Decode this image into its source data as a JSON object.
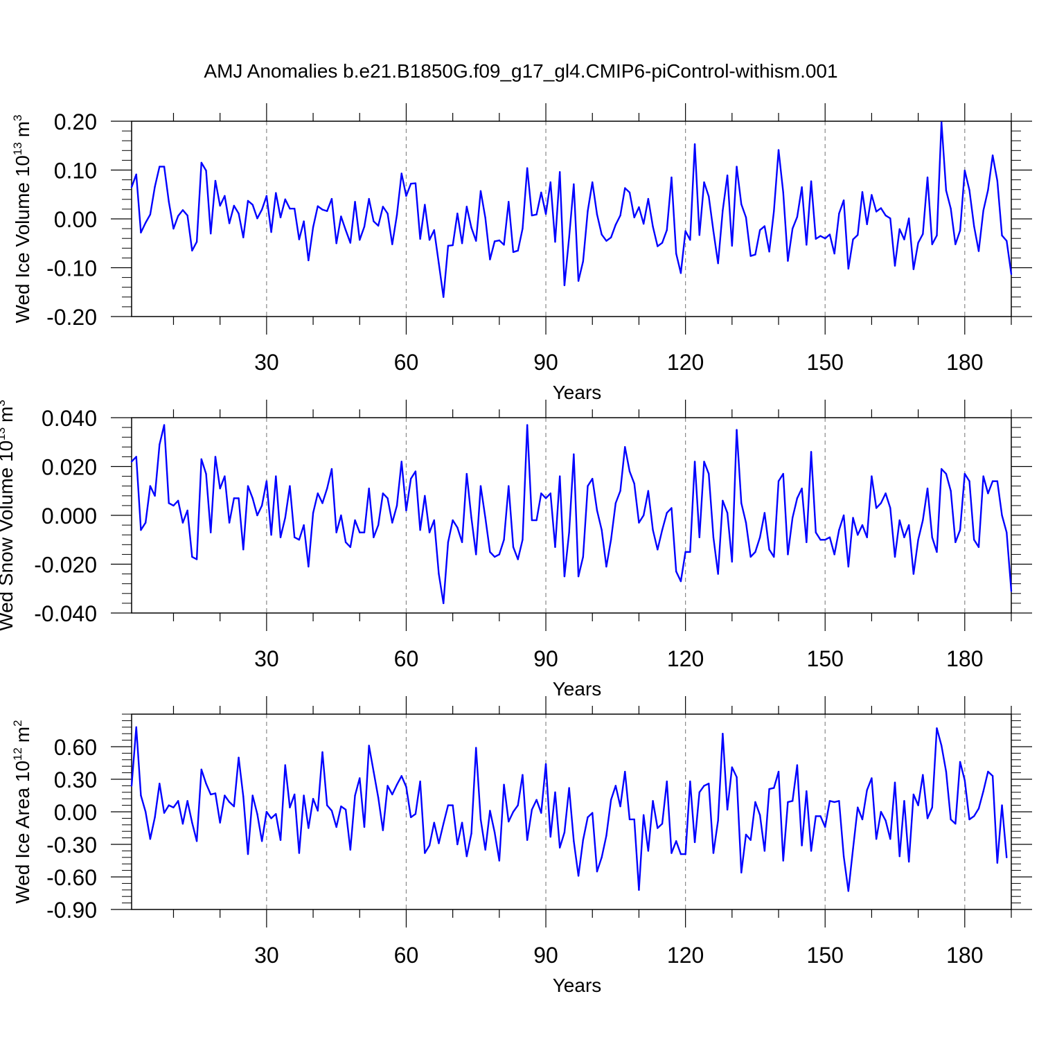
{
  "figure": {
    "title": "AMJ Anomalies b.e21.B1850G.f09_g17_gl4.CMIP6-piControl-withism.001"
  },
  "line_color": "#0000ff",
  "chart_data": [
    {
      "type": "line",
      "ylabel": "Wed Ice Volume 10",
      "ylabel_exp": "13",
      "ylabel_unit": "m",
      "ylabel_unit_exp": "3",
      "xlabel": "Years",
      "xlim": [
        1,
        190
      ],
      "ylim": [
        -0.2,
        0.2
      ],
      "x_ticks": [
        30,
        60,
        90,
        120,
        150,
        180
      ],
      "x_tick_labels": [
        "30",
        "60",
        "90",
        "120",
        "150",
        "180"
      ],
      "y_ticks": [
        -0.2,
        -0.1,
        0.0,
        0.1,
        0.2
      ],
      "y_tick_labels": [
        "-0.20",
        "-0.10",
        "0.00",
        "0.10",
        "0.20"
      ],
      "minor_y_step": 0.02,
      "grid": "dashed vertical lines at major x ticks",
      "series": [
        {
          "values": [
            0.065,
            0.091,
            -0.028,
            -0.008,
            0.009,
            0.066,
            0.107,
            0.107,
            0.035,
            -0.02,
            0.006,
            0.018,
            0.007,
            -0.065,
            -0.047,
            0.115,
            0.099,
            -0.03,
            0.078,
            0.027,
            0.047,
            -0.009,
            0.027,
            0.011,
            -0.038,
            0.037,
            0.029,
            0.001,
            0.019,
            0.047,
            -0.027,
            0.053,
            0.003,
            0.04,
            0.021,
            0.021,
            -0.042,
            -0.005,
            -0.085,
            -0.017,
            0.026,
            0.019,
            0.016,
            0.041,
            -0.05,
            0.005,
            -0.023,
            -0.049,
            0.035,
            -0.043,
            -0.016,
            0.041,
            -0.005,
            -0.014,
            0.025,
            0.011,
            -0.052,
            0.008,
            0.093,
            0.047,
            0.072,
            0.073,
            -0.041,
            0.029,
            -0.043,
            -0.023,
            -0.091,
            -0.16,
            -0.055,
            -0.054,
            0.011,
            -0.05,
            0.025,
            -0.018,
            -0.045,
            0.057,
            0.002,
            -0.083,
            -0.046,
            -0.044,
            -0.053,
            0.035,
            -0.068,
            -0.065,
            -0.02,
            0.104,
            0.007,
            0.009,
            0.054,
            0.01,
            0.075,
            -0.047,
            0.096,
            -0.136,
            -0.038,
            0.071,
            -0.127,
            -0.087,
            0.016,
            0.075,
            0.009,
            -0.032,
            -0.045,
            -0.038,
            -0.012,
            0.007,
            0.063,
            0.054,
            0.003,
            0.024,
            -0.01,
            0.041,
            -0.016,
            -0.056,
            -0.049,
            -0.023,
            0.085,
            -0.071,
            -0.111,
            -0.025,
            -0.043,
            0.153,
            -0.033,
            0.075,
            0.046,
            -0.025,
            -0.091,
            0.017,
            0.089,
            -0.055,
            0.107,
            0.03,
            0.003,
            -0.076,
            -0.073,
            -0.023,
            -0.015,
            -0.067,
            0.016,
            0.141,
            0.054,
            -0.086,
            -0.02,
            0.004,
            0.065,
            -0.053,
            0.077,
            -0.041,
            -0.035,
            -0.04,
            -0.032,
            -0.071,
            0.011,
            0.038,
            -0.102,
            -0.042,
            -0.033,
            0.055,
            -0.011,
            0.049,
            0.015,
            0.022,
            0.007,
            0.001,
            -0.096,
            -0.021,
            -0.042,
            0.001,
            -0.103,
            -0.049,
            -0.031,
            0.085,
            -0.052,
            -0.034,
            0.198,
            0.058,
            0.021,
            -0.052,
            -0.024,
            0.099,
            0.059,
            -0.015,
            -0.066,
            0.017,
            0.059,
            0.13,
            0.078,
            -0.034,
            -0.045,
            -0.113
          ]
        }
      ]
    },
    {
      "type": "line",
      "ylabel": "Wed Snow Volume 10",
      "ylabel_exp": "13",
      "ylabel_unit": "m",
      "ylabel_unit_exp": "3",
      "xlabel": "Years",
      "xlim": [
        1,
        190
      ],
      "ylim": [
        -0.04,
        0.04
      ],
      "x_ticks": [
        30,
        60,
        90,
        120,
        150,
        180
      ],
      "x_tick_labels": [
        "30",
        "60",
        "90",
        "120",
        "150",
        "180"
      ],
      "y_ticks": [
        -0.04,
        -0.02,
        0.0,
        0.02,
        0.04
      ],
      "y_tick_labels": [
        "-0.040",
        "-0.020",
        "0.000",
        "0.020",
        "0.040"
      ],
      "minor_y_step": 0.004,
      "grid": "dashed vertical lines at major x ticks",
      "series": [
        {
          "values": [
            0.022,
            0.024,
            -0.006,
            -0.003,
            0.012,
            0.008,
            0.029,
            0.037,
            0.005,
            0.004,
            0.006,
            -0.003,
            0.002,
            -0.017,
            -0.018,
            0.023,
            0.017,
            -0.007,
            0.024,
            0.011,
            0.016,
            -0.003,
            0.007,
            0.007,
            -0.014,
            0.012,
            0.007,
            0.0,
            0.004,
            0.014,
            -0.008,
            0.016,
            -0.009,
            -0.001,
            0.012,
            -0.009,
            -0.01,
            -0.004,
            -0.021,
            0.001,
            0.009,
            0.005,
            0.011,
            0.019,
            -0.007,
            0.0,
            -0.011,
            -0.013,
            -0.002,
            -0.007,
            -0.007,
            0.011,
            -0.009,
            -0.004,
            0.009,
            0.007,
            -0.003,
            0.004,
            0.022,
            0.002,
            0.015,
            0.018,
            -0.006,
            0.008,
            -0.007,
            -0.002,
            -0.024,
            -0.036,
            -0.011,
            -0.002,
            -0.005,
            -0.011,
            0.017,
            -0.001,
            -0.016,
            0.012,
            -0.001,
            -0.015,
            -0.017,
            -0.016,
            -0.01,
            0.012,
            -0.013,
            -0.018,
            -0.01,
            0.037,
            -0.002,
            -0.002,
            0.009,
            0.007,
            0.009,
            -0.013,
            0.016,
            -0.025,
            -0.007,
            0.025,
            -0.025,
            -0.017,
            0.012,
            0.015,
            0.002,
            -0.006,
            -0.021,
            -0.01,
            0.005,
            0.01,
            0.028,
            0.018,
            0.013,
            -0.003,
            0.0,
            0.01,
            -0.006,
            -0.014,
            -0.006,
            0.001,
            0.003,
            -0.023,
            -0.027,
            -0.015,
            -0.015,
            0.022,
            -0.009,
            0.022,
            0.017,
            -0.009,
            -0.024,
            0.006,
            0.001,
            -0.019,
            0.035,
            0.005,
            -0.003,
            -0.017,
            -0.015,
            -0.009,
            0.001,
            -0.014,
            -0.017,
            0.014,
            0.017,
            -0.016,
            -0.001,
            0.007,
            0.011,
            -0.011,
            0.026,
            -0.007,
            -0.01,
            -0.01,
            -0.009,
            -0.016,
            -0.006,
            0.0,
            -0.021,
            -0.001,
            -0.008,
            -0.004,
            -0.009,
            0.016,
            0.003,
            0.005,
            0.009,
            0.003,
            -0.017,
            -0.002,
            -0.009,
            -0.004,
            -0.024,
            -0.01,
            -0.002,
            0.011,
            -0.009,
            -0.015,
            0.019,
            0.017,
            0.01,
            -0.011,
            -0.006,
            0.017,
            0.014,
            -0.01,
            -0.013,
            0.016,
            0.009,
            0.014,
            0.014,
            0.0,
            -0.007,
            -0.031
          ]
        }
      ]
    },
    {
      "type": "line",
      "ylabel": "Wed Ice Area 10",
      "ylabel_exp": "12",
      "ylabel_unit": "m",
      "ylabel_unit_exp": "2",
      "xlabel": "Years",
      "xlim": [
        1,
        190
      ],
      "ylim": [
        -0.9,
        0.9
      ],
      "x_ticks": [
        30,
        60,
        90,
        120,
        150,
        180
      ],
      "x_tick_labels": [
        "30",
        "60",
        "90",
        "120",
        "150",
        "180"
      ],
      "y_ticks": [
        -0.9,
        -0.6,
        -0.3,
        0.0,
        0.3,
        0.6
      ],
      "y_tick_labels": [
        "-0.90",
        "-0.60",
        "-0.30",
        "0.00",
        "0.30",
        "0.60"
      ],
      "minor_y_step": 0.06,
      "grid": "dashed vertical lines at major x ticks",
      "series": [
        {
          "values": [
            0.24,
            0.78,
            0.15,
            0.0,
            -0.25,
            -0.05,
            0.26,
            -0.01,
            0.06,
            0.04,
            0.1,
            -0.11,
            0.1,
            -0.1,
            -0.27,
            0.39,
            0.26,
            0.16,
            0.17,
            -0.1,
            0.15,
            0.09,
            0.05,
            0.5,
            0.14,
            -0.39,
            0.15,
            -0.02,
            -0.27,
            0.0,
            -0.06,
            -0.02,
            -0.26,
            0.43,
            0.04,
            0.16,
            -0.38,
            0.15,
            -0.15,
            0.12,
            0.01,
            0.55,
            0.06,
            0.01,
            -0.14,
            0.05,
            0.02,
            -0.35,
            0.15,
            0.31,
            -0.14,
            0.61,
            0.37,
            0.13,
            -0.17,
            0.24,
            0.16,
            0.25,
            0.33,
            0.23,
            -0.05,
            -0.02,
            0.28,
            -0.38,
            -0.31,
            -0.1,
            -0.29,
            -0.11,
            0.06,
            0.06,
            -0.3,
            -0.1,
            -0.41,
            -0.2,
            0.59,
            -0.07,
            -0.35,
            0.01,
            -0.19,
            -0.45,
            0.25,
            -0.09,
            0.0,
            0.06,
            0.34,
            -0.26,
            0.02,
            0.11,
            -0.01,
            0.44,
            -0.23,
            0.18,
            -0.33,
            -0.19,
            0.22,
            -0.27,
            -0.59,
            -0.26,
            -0.05,
            -0.01,
            -0.55,
            -0.42,
            -0.22,
            0.11,
            0.24,
            0.05,
            0.37,
            -0.07,
            -0.07,
            -0.72,
            -0.03,
            -0.36,
            0.1,
            -0.15,
            -0.11,
            0.28,
            -0.38,
            -0.27,
            -0.39,
            -0.39,
            0.28,
            -0.28,
            0.18,
            0.24,
            0.26,
            -0.38,
            -0.08,
            0.72,
            0.02,
            0.41,
            0.32,
            -0.56,
            -0.21,
            -0.26,
            0.09,
            -0.03,
            -0.36,
            0.21,
            0.22,
            0.37,
            -0.45,
            0.09,
            0.1,
            0.43,
            -0.31,
            0.19,
            -0.36,
            -0.04,
            -0.04,
            -0.14,
            0.1,
            0.09,
            0.1,
            -0.41,
            -0.73,
            -0.34,
            0.04,
            -0.07,
            0.2,
            0.31,
            -0.25,
            0.0,
            -0.08,
            -0.25,
            0.27,
            -0.41,
            0.1,
            -0.46,
            0.16,
            0.06,
            0.34,
            -0.06,
            0.04,
            0.77,
            0.61,
            0.37,
            -0.07,
            -0.11,
            0.46,
            0.29,
            -0.07,
            -0.04,
            0.03,
            0.19,
            0.37,
            0.33,
            -0.47,
            0.06,
            -0.42
          ]
        }
      ]
    }
  ]
}
